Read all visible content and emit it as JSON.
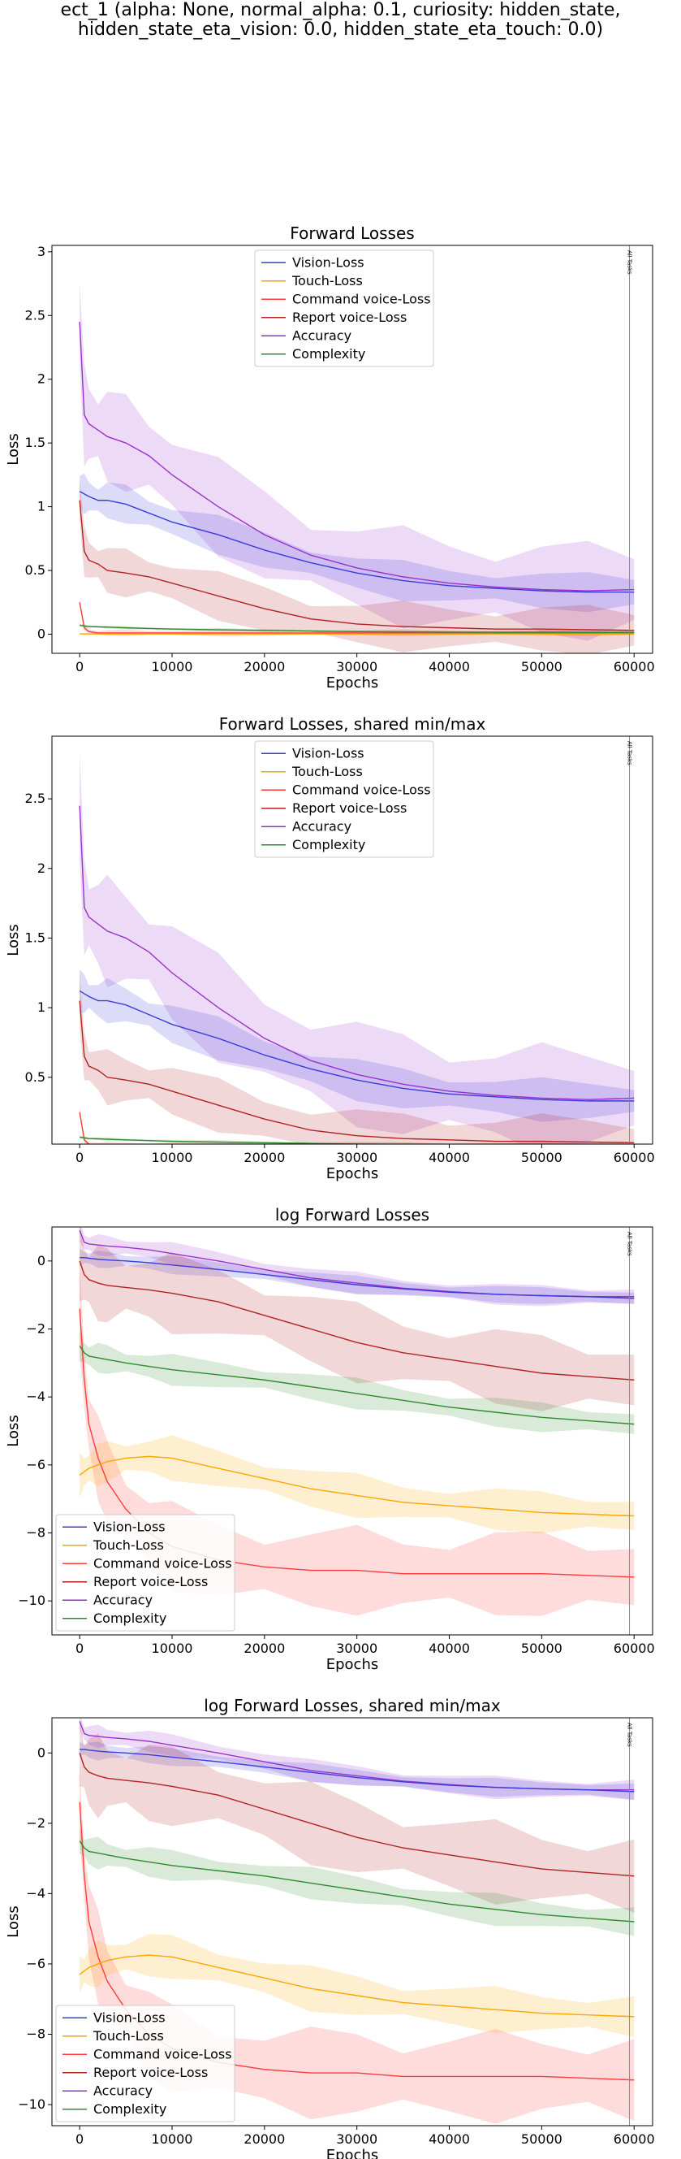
{
  "figure": {
    "suptitle_line1": "ect_1 (alpha: None, normal_alpha: 0.1, curiosity: hidden_state,",
    "suptitle_line2": "hidden_state_eta_vision: 0.0, hidden_state_eta_touch: 0.0)",
    "colors": {
      "Vision-Loss": "#3b3bdb",
      "Touch-Loss": "#ffa500",
      "Command voice-Loss": "#ff3b3b",
      "Report voice-Loss": "#b22222",
      "Accuracy": "#9932cc",
      "Complexity": "#2e8b2e"
    }
  },
  "chart_data": [
    {
      "type": "line",
      "title": "Forward Losses",
      "xlabel": "Epochs",
      "ylabel": "Loss",
      "xlim": [
        -3000,
        62000
      ],
      "ylim": [
        -0.15,
        3.05
      ],
      "xticks": [
        0,
        10000,
        20000,
        30000,
        40000,
        50000,
        60000
      ],
      "yticks": [
        0.0,
        0.5,
        1.0,
        1.5,
        2.0,
        2.5,
        3.0
      ],
      "legend_position": "top-center",
      "vline": {
        "x": 59500,
        "label": "All Tasks"
      },
      "x": [
        0,
        500,
        1000,
        2000,
        3000,
        5000,
        7500,
        10000,
        15000,
        20000,
        25000,
        30000,
        35000,
        40000,
        45000,
        50000,
        55000,
        60000
      ],
      "series": [
        {
          "name": "Vision-Loss",
          "values": [
            1.12,
            1.1,
            1.08,
            1.05,
            1.05,
            1.02,
            0.95,
            0.88,
            0.78,
            0.66,
            0.56,
            0.48,
            0.42,
            0.38,
            0.36,
            0.34,
            0.33,
            0.33
          ],
          "band": 0.12
        },
        {
          "name": "Touch-Loss",
          "values": [
            0.002,
            0.002,
            0.002,
            0.002,
            0.002,
            0.002,
            0.002,
            0.002,
            0.002,
            0.002,
            0.002,
            0.002,
            0.002,
            0.002,
            0.002,
            0.002,
            0.002,
            0.002
          ],
          "band": 0.005
        },
        {
          "name": "Command voice-Loss",
          "values": [
            0.25,
            0.05,
            0.02,
            0.01,
            0.01,
            0.01,
            0.01,
            0.01,
            0.01,
            0.01,
            0.01,
            0.01,
            0.01,
            0.01,
            0.01,
            0.01,
            0.01,
            0.01
          ],
          "band": 0.02
        },
        {
          "name": "Report voice-Loss",
          "values": [
            1.05,
            0.65,
            0.58,
            0.55,
            0.5,
            0.48,
            0.45,
            0.4,
            0.3,
            0.2,
            0.12,
            0.08,
            0.06,
            0.05,
            0.04,
            0.04,
            0.035,
            0.03
          ],
          "band": 0.15
        },
        {
          "name": "Accuracy",
          "values": [
            2.45,
            1.72,
            1.65,
            1.6,
            1.55,
            1.5,
            1.4,
            1.25,
            1.0,
            0.78,
            0.62,
            0.52,
            0.45,
            0.4,
            0.37,
            0.35,
            0.34,
            0.35
          ],
          "band": 0.3
        },
        {
          "name": "Complexity",
          "values": [
            0.07,
            0.065,
            0.06,
            0.058,
            0.055,
            0.05,
            0.045,
            0.04,
            0.035,
            0.03,
            0.025,
            0.02,
            0.018,
            0.016,
            0.015,
            0.015,
            0.014,
            0.014
          ],
          "band": 0.01
        }
      ]
    },
    {
      "type": "line",
      "title": "Forward Losses, shared min/max",
      "xlabel": "Epochs",
      "ylabel": "Loss",
      "xlim": [
        -3000,
        62000
      ],
      "ylim": [
        0.02,
        2.95
      ],
      "xticks": [
        0,
        10000,
        20000,
        30000,
        40000,
        50000,
        60000
      ],
      "yticks": [
        0.5,
        1.0,
        1.5,
        2.0,
        2.5
      ],
      "legend_position": "top-center",
      "vline": {
        "x": 59500,
        "label": "All Tasks"
      },
      "x": [
        0,
        500,
        1000,
        2000,
        3000,
        5000,
        7500,
        10000,
        15000,
        20000,
        25000,
        30000,
        35000,
        40000,
        45000,
        50000,
        55000,
        60000
      ],
      "series": [
        {
          "name": "Vision-Loss",
          "values": [
            1.12,
            1.1,
            1.08,
            1.05,
            1.05,
            1.02,
            0.95,
            0.88,
            0.78,
            0.66,
            0.56,
            0.48,
            0.42,
            0.38,
            0.36,
            0.34,
            0.33,
            0.33
          ],
          "band": 0.12
        },
        {
          "name": "Touch-Loss",
          "values": [
            0.002,
            0.002,
            0.002,
            0.002,
            0.002,
            0.002,
            0.002,
            0.002,
            0.002,
            0.002,
            0.002,
            0.002,
            0.002,
            0.002,
            0.002,
            0.002,
            0.002,
            0.002
          ],
          "band": 0.005
        },
        {
          "name": "Command voice-Loss",
          "values": [
            0.25,
            0.05,
            0.02,
            0.01,
            0.01,
            0.01,
            0.01,
            0.01,
            0.01,
            0.01,
            0.01,
            0.01,
            0.01,
            0.01,
            0.01,
            0.01,
            0.01,
            0.01
          ],
          "band": 0.02
        },
        {
          "name": "Report voice-Loss",
          "values": [
            1.05,
            0.65,
            0.58,
            0.55,
            0.5,
            0.48,
            0.45,
            0.4,
            0.3,
            0.2,
            0.12,
            0.08,
            0.06,
            0.05,
            0.04,
            0.04,
            0.035,
            0.03
          ],
          "band": 0.15
        },
        {
          "name": "Accuracy",
          "values": [
            2.45,
            1.72,
            1.65,
            1.6,
            1.55,
            1.5,
            1.4,
            1.25,
            1.0,
            0.78,
            0.62,
            0.52,
            0.45,
            0.4,
            0.37,
            0.35,
            0.34,
            0.35
          ],
          "band": 0.3
        },
        {
          "name": "Complexity",
          "values": [
            0.07,
            0.065,
            0.06,
            0.058,
            0.055,
            0.05,
            0.045,
            0.04,
            0.035,
            0.03,
            0.025,
            0.02,
            0.018,
            0.016,
            0.015,
            0.015,
            0.014,
            0.014
          ],
          "band": 0.01
        }
      ]
    },
    {
      "type": "line",
      "title": "log Forward Losses",
      "xlabel": "Epochs",
      "ylabel": "Loss",
      "xlim": [
        -3000,
        62000
      ],
      "ylim": [
        -11.0,
        1.0
      ],
      "xticks": [
        0,
        10000,
        20000,
        30000,
        40000,
        50000,
        60000
      ],
      "yticks": [
        0,
        -2,
        -4,
        -6,
        -8,
        -10
      ],
      "legend_position": "bottom-left",
      "vline": {
        "x": 59500,
        "label": "All Tasks"
      },
      "x": [
        0,
        500,
        1000,
        2000,
        3000,
        5000,
        7500,
        10000,
        15000,
        20000,
        25000,
        30000,
        35000,
        40000,
        45000,
        50000,
        55000,
        60000
      ],
      "series": [
        {
          "name": "Vision-Loss",
          "values": [
            0.1,
            0.1,
            0.08,
            0.05,
            0.03,
            0.0,
            -0.05,
            -0.12,
            -0.25,
            -0.4,
            -0.55,
            -0.7,
            -0.82,
            -0.92,
            -0.98,
            -1.02,
            -1.05,
            -1.1
          ],
          "band": 0.2
        },
        {
          "name": "Touch-Loss",
          "values": [
            -6.3,
            -6.2,
            -6.1,
            -6.0,
            -5.9,
            -5.8,
            -5.75,
            -5.8,
            -6.1,
            -6.4,
            -6.7,
            -6.9,
            -7.1,
            -7.2,
            -7.3,
            -7.4,
            -7.45,
            -7.5
          ],
          "band": 0.5
        },
        {
          "name": "Command voice-Loss",
          "values": [
            -1.4,
            -3.5,
            -4.8,
            -5.8,
            -6.5,
            -7.3,
            -8.0,
            -8.4,
            -8.8,
            -9.0,
            -9.1,
            -9.1,
            -9.2,
            -9.2,
            -9.2,
            -9.2,
            -9.25,
            -9.3
          ],
          "band": 1.0
        },
        {
          "name": "Report voice-Loss",
          "values": [
            0.0,
            -0.4,
            -0.55,
            -0.65,
            -0.72,
            -0.78,
            -0.85,
            -0.95,
            -1.2,
            -1.6,
            -2.0,
            -2.4,
            -2.7,
            -2.9,
            -3.1,
            -3.3,
            -3.4,
            -3.5
          ],
          "band": 0.9
        },
        {
          "name": "Accuracy",
          "values": [
            0.9,
            0.55,
            0.5,
            0.47,
            0.44,
            0.4,
            0.33,
            0.22,
            0.0,
            -0.25,
            -0.5,
            -0.65,
            -0.8,
            -0.9,
            -0.98,
            -1.02,
            -1.05,
            -1.05
          ],
          "band": 0.25
        },
        {
          "name": "Complexity",
          "values": [
            -2.5,
            -2.7,
            -2.8,
            -2.85,
            -2.9,
            -3.0,
            -3.1,
            -3.2,
            -3.35,
            -3.5,
            -3.7,
            -3.9,
            -4.1,
            -4.3,
            -4.45,
            -4.6,
            -4.7,
            -4.8
          ],
          "band": 0.35
        }
      ]
    },
    {
      "type": "line",
      "title": "log Forward Losses, shared min/max",
      "xlabel": "Epochs",
      "ylabel": "Loss",
      "xlim": [
        -3000,
        62000
      ],
      "ylim": [
        -10.6,
        1.0
      ],
      "xticks": [
        0,
        10000,
        20000,
        30000,
        40000,
        50000,
        60000
      ],
      "yticks": [
        0,
        -2,
        -4,
        -6,
        -8,
        -10
      ],
      "legend_position": "bottom-left",
      "vline": {
        "x": 59500,
        "label": "All Tasks"
      },
      "x": [
        0,
        500,
        1000,
        2000,
        3000,
        5000,
        7500,
        10000,
        15000,
        20000,
        25000,
        30000,
        35000,
        40000,
        45000,
        50000,
        55000,
        60000
      ],
      "series": [
        {
          "name": "Vision-Loss",
          "values": [
            0.1,
            0.1,
            0.08,
            0.05,
            0.03,
            0.0,
            -0.05,
            -0.12,
            -0.25,
            -0.4,
            -0.55,
            -0.7,
            -0.82,
            -0.92,
            -0.98,
            -1.02,
            -1.05,
            -1.1
          ],
          "band": 0.2
        },
        {
          "name": "Touch-Loss",
          "values": [
            -6.3,
            -6.2,
            -6.1,
            -6.0,
            -5.9,
            -5.8,
            -5.75,
            -5.8,
            -6.1,
            -6.4,
            -6.7,
            -6.9,
            -7.1,
            -7.2,
            -7.3,
            -7.4,
            -7.45,
            -7.5
          ],
          "band": 0.5
        },
        {
          "name": "Command voice-Loss",
          "values": [
            -1.4,
            -3.5,
            -4.8,
            -5.8,
            -6.5,
            -7.3,
            -8.0,
            -8.4,
            -8.8,
            -9.0,
            -9.1,
            -9.1,
            -9.2,
            -9.2,
            -9.2,
            -9.2,
            -9.25,
            -9.3
          ],
          "band": 1.0
        },
        {
          "name": "Report voice-Loss",
          "values": [
            0.0,
            -0.4,
            -0.55,
            -0.65,
            -0.72,
            -0.78,
            -0.85,
            -0.95,
            -1.2,
            -1.6,
            -2.0,
            -2.4,
            -2.7,
            -2.9,
            -3.1,
            -3.3,
            -3.4,
            -3.5
          ],
          "band": 0.9
        },
        {
          "name": "Accuracy",
          "values": [
            0.9,
            0.55,
            0.5,
            0.47,
            0.44,
            0.4,
            0.33,
            0.22,
            0.0,
            -0.25,
            -0.5,
            -0.65,
            -0.8,
            -0.9,
            -0.98,
            -1.02,
            -1.05,
            -1.05
          ],
          "band": 0.25
        },
        {
          "name": "Complexity",
          "values": [
            -2.5,
            -2.7,
            -2.8,
            -2.85,
            -2.9,
            -3.0,
            -3.1,
            -3.2,
            -3.35,
            -3.5,
            -3.7,
            -3.9,
            -4.1,
            -4.3,
            -4.45,
            -4.6,
            -4.7,
            -4.8
          ],
          "band": 0.35
        }
      ]
    }
  ]
}
